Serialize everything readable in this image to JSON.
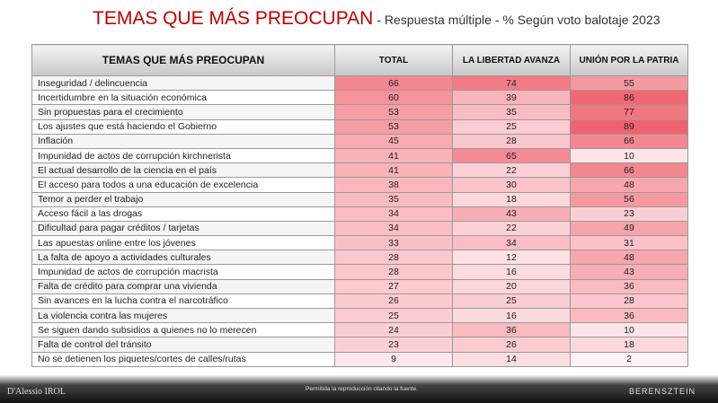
{
  "header": {
    "title": "TEMAS QUE MÁS PREOCUPAN",
    "subtitle": "- Respuesta múltiple - % Según voto balotaje 2023"
  },
  "table": {
    "columns": [
      "TEMAS QUE MÁS PREOCUPAN",
      "TOTAL",
      "LA LIBERTAD AVANZA",
      "UNIÓN POR LA PATRIA"
    ],
    "rows": [
      [
        "Inseguridad / delincuencia",
        66,
        74,
        55
      ],
      [
        "Incertidumbre en la situación económica",
        60,
        39,
        86
      ],
      [
        "Sin propuestas para el crecimiento",
        53,
        35,
        77
      ],
      [
        "Los ajustes que está haciendo el Gobierno",
        53,
        25,
        89
      ],
      [
        "Inflación",
        45,
        28,
        66
      ],
      [
        "Impunidad de actos de corrupción kirchnerista",
        41,
        65,
        10
      ],
      [
        "El actual desarrollo de la ciencia en el país",
        41,
        22,
        66
      ],
      [
        "El acceso para todos a una educación de excelencia",
        38,
        30,
        48
      ],
      [
        "Temor a perder el trabajo",
        35,
        18,
        56
      ],
      [
        "Acceso fácil a las drogas",
        34,
        43,
        23
      ],
      [
        "Dificultad para pagar créditos / tarjetas",
        34,
        22,
        49
      ],
      [
        "Las apuestas online entre los jóvenes",
        33,
        34,
        31
      ],
      [
        "La falta de apoyo a actividades culturales",
        28,
        12,
        48
      ],
      [
        "Impunidad de actos de corrupción macrista",
        28,
        16,
        43
      ],
      [
        "Falta de crédito para comprar una vivienda",
        27,
        20,
        36
      ],
      [
        "Sin avances en la lucha contra el narcotráfico",
        26,
        25,
        28
      ],
      [
        "La violencia contra las mujeres",
        25,
        16,
        36
      ],
      [
        "Se siguen dando subsidios a quienes no lo merecen",
        24,
        36,
        10
      ],
      [
        "Falta de control del tránsito",
        23,
        26,
        18
      ],
      [
        "No se detienen los piquetes/cortes de calles/rutas",
        9,
        14,
        2
      ]
    ]
  },
  "footer": {
    "left_logo": "D'Alessio IROL",
    "note": "Permitida la reproducción citando la fuente.",
    "right_logo": "BERENSZTEIN"
  }
}
